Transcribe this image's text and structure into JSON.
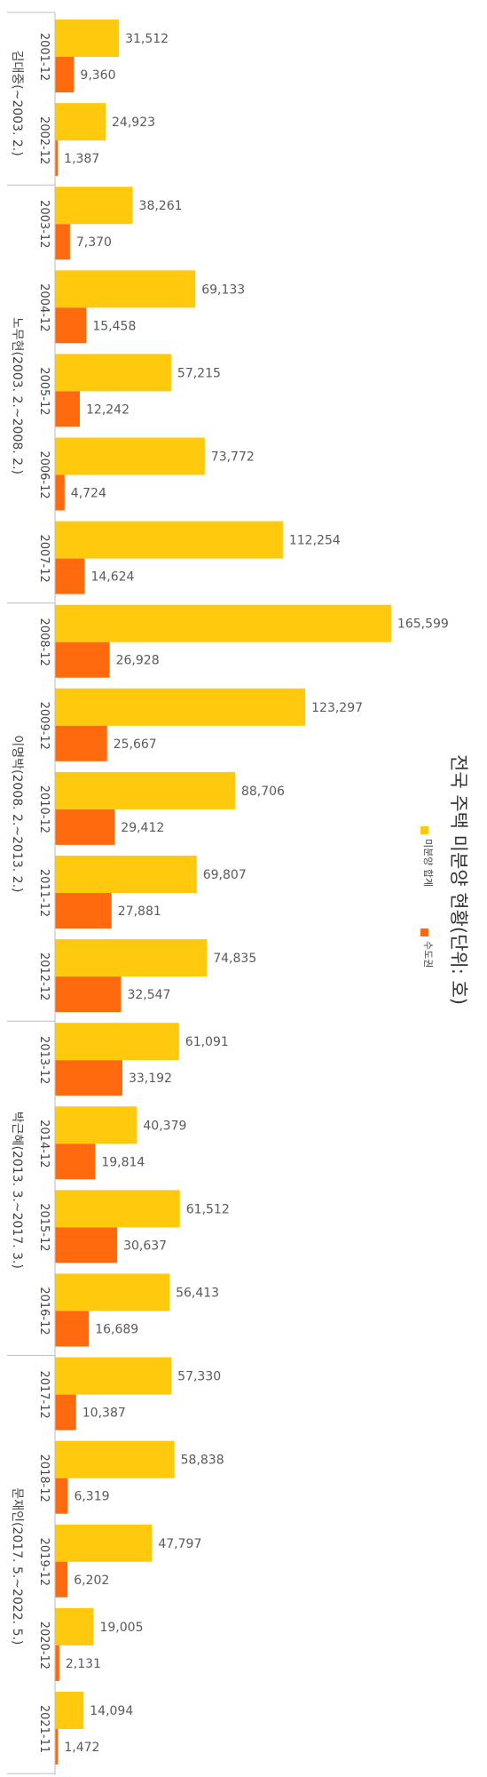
{
  "chart_data": {
    "type": "bar",
    "orientation": "horizontal",
    "title": "전국 주택 미분양 현황(단위: 호)",
    "xlim": [
      0,
      170000
    ],
    "grid": false,
    "legend_position": "right",
    "categories": [
      "2001-12",
      "2002-12",
      "2003-12",
      "2004-12",
      "2005-12",
      "2006-12",
      "2007-12",
      "2008-12",
      "2009-12",
      "2010-12",
      "2011-12",
      "2012-12",
      "2013-12",
      "2014-12",
      "2015-12",
      "2016-12",
      "2017-12",
      "2018-12",
      "2019-12",
      "2020-12",
      "2021-11"
    ],
    "groups": [
      {
        "label": "김대중(~2003. 2.)",
        "start": 0,
        "end": 1
      },
      {
        "label": "노무현(2003. 2.~2008. 2.)",
        "start": 2,
        "end": 6
      },
      {
        "label": "이명박(2008. 2.~2013. 2.)",
        "start": 7,
        "end": 11
      },
      {
        "label": "박근혜(2013. 3.~2017. 3.)",
        "start": 12,
        "end": 15
      },
      {
        "label": "문재인(2017. 5.~2022. 5.)",
        "start": 16,
        "end": 20
      }
    ],
    "series": [
      {
        "name": "미분양 합계",
        "color": "#FFC90E",
        "values": [
          31512,
          24923,
          38261,
          69133,
          57215,
          73772,
          112254,
          165599,
          123297,
          88706,
          69807,
          74835,
          61091,
          40379,
          61512,
          56413,
          57330,
          58838,
          47797,
          19005,
          14094
        ]
      },
      {
        "name": "수도권",
        "color": "#FF6A0E",
        "values": [
          9360,
          1387,
          7370,
          15458,
          12242,
          4724,
          14624,
          26928,
          25667,
          29412,
          27881,
          32547,
          33192,
          19814,
          30637,
          16689,
          10387,
          6319,
          6202,
          2131,
          1472
        ]
      }
    ]
  }
}
